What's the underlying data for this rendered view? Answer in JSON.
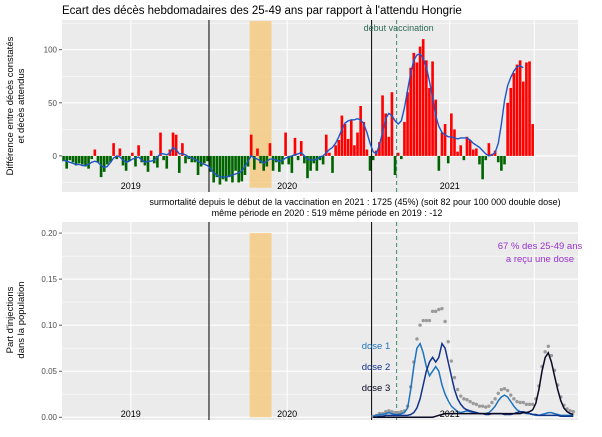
{
  "chart_data": [
    {
      "type": "bar",
      "title": "Ecart des décès hebdomadaires des 25-49 ans par rapport à l'attendu Hongrie",
      "ylabel_lines": [
        "Différence entre décès constatés",
        "et décès attendus"
      ],
      "xlim": [
        0,
        165
      ],
      "ylim": [
        -34,
        128
      ],
      "yticks": [
        0,
        50,
        100
      ],
      "year_labels": [
        {
          "label": "2019",
          "x": 22
        },
        {
          "label": "2020",
          "x": 72
        },
        {
          "label": "2021",
          "x": 124
        }
      ],
      "year_lines": [
        47,
        99
      ],
      "vaccination_line": {
        "x": 107,
        "label": "début vaccination"
      },
      "highlight": {
        "x0": 60,
        "x1": 67,
        "color": "#f5c97c"
      },
      "positive_color": "#ff0000",
      "negative_color": "#006400",
      "smooth_color": "#1e56c8",
      "values": [
        -5,
        -12,
        -4,
        -6,
        -9,
        -7,
        -8,
        -10,
        -12,
        -3,
        6,
        -6,
        -20,
        -15,
        -8,
        -6,
        12,
        -3,
        7,
        -9,
        -14,
        -5,
        3,
        -10,
        10,
        -6,
        -9,
        -15,
        5,
        -7,
        -11,
        22,
        -4,
        -12,
        6,
        22,
        20,
        -16,
        12,
        -7,
        -3,
        -6,
        -6,
        -18,
        -10,
        -7,
        -5,
        -15,
        -25,
        -20,
        -27,
        -22,
        -24,
        -20,
        -25,
        -14,
        -25,
        -24,
        -18,
        -10,
        20,
        -13,
        7,
        -7,
        -14,
        -10,
        12,
        -14,
        -6,
        -15,
        -8,
        22,
        -8,
        -16,
        17,
        -4,
        14,
        -7,
        -21,
        -14,
        -7,
        -14,
        -4,
        -8,
        20,
        3,
        -16,
        10,
        15,
        38,
        30,
        16,
        34,
        10,
        22,
        47,
        32,
        6,
        -14,
        -4,
        5,
        13,
        57,
        40,
        18,
        60,
        -18,
        3,
        -3,
        32,
        60,
        83,
        97,
        88,
        103,
        110,
        90,
        64,
        89,
        53,
        -14,
        22,
        30,
        -7,
        40,
        25,
        4,
        10,
        -4,
        18,
        15,
        6,
        7,
        -8,
        -22,
        -4,
        12,
        2,
        5,
        -6,
        -14,
        -8,
        50,
        64,
        78,
        86,
        90,
        70,
        88,
        89,
        30
      ],
      "smooth": [
        -4,
        -5,
        -6,
        -7,
        -8,
        -8,
        -9,
        -9,
        -8,
        -6,
        -5,
        -6,
        -9,
        -11,
        -10,
        -6,
        -2,
        0,
        -1,
        -4,
        -6,
        -5,
        -3,
        -2,
        -1,
        -4,
        -6,
        -5,
        -5,
        -4,
        -1,
        2,
        2,
        1,
        3,
        8,
        6,
        2,
        2,
        1,
        -1,
        -2,
        -3,
        -5,
        -7,
        -8,
        -9,
        -12,
        -16,
        -18,
        -20,
        -20,
        -20,
        -19,
        -18,
        -17,
        -16,
        -14,
        -10,
        -5,
        0,
        -2,
        -3,
        -5,
        -7,
        -5,
        -3,
        -3,
        -4,
        -5,
        -4,
        -2,
        -1,
        0,
        1,
        2,
        3,
        0,
        -3,
        -4,
        -4,
        -3,
        -1,
        0,
        3,
        6,
        8,
        12,
        18,
        25,
        31,
        33,
        34,
        34,
        35,
        34,
        30,
        22,
        12,
        4,
        2,
        10,
        22,
        35,
        40,
        38,
        33,
        30,
        33,
        45,
        62,
        78,
        90,
        95,
        96,
        92,
        84,
        70,
        55,
        38,
        28,
        22,
        20,
        18,
        18,
        17,
        16,
        17,
        17,
        17,
        15,
        12,
        10,
        8,
        5,
        2,
        0,
        1,
        3,
        12,
        30,
        52,
        66,
        74,
        80,
        84,
        85,
        83
      ],
      "annotations": [
        "surmortalité depuis le début de la vaccination en 2021 : 1725  (45%)          (soit 82 pour 100 000 double dose)",
        "même période en 2020 : 519          même période en 2019 : -12"
      ]
    },
    {
      "type": "line",
      "ylabel_lines": [
        "Part d'injections",
        "dans la population"
      ],
      "xlim": [
        0,
        165
      ],
      "ylim": [
        -0.003,
        0.212
      ],
      "yticks": [
        0.0,
        0.05,
        0.1,
        0.15,
        0.2
      ],
      "ytick_labels": [
        "0.00",
        "0.05",
        "0.10",
        "0.15",
        "0.20"
      ],
      "year_labels": [
        {
          "label": "2019",
          "x": 22
        },
        {
          "label": "2020",
          "x": 72
        },
        {
          "label": "2021",
          "x": 124
        }
      ],
      "year_lines": [
        47,
        99
      ],
      "vaccination_line": {
        "x": 107
      },
      "highlight": {
        "x0": 60,
        "x1": 67,
        "color": "#f5c97c"
      },
      "annotation": [
        "67 % des 25-49 ans",
        "a reçu une dose"
      ],
      "annotation_color": "#9932cc",
      "series": [
        {
          "name": "dose 1",
          "color": "#1e73be",
          "x0": 99,
          "values": [
            0.001,
            0.002,
            0.003,
            0.003,
            0.004,
            0.005,
            0.004,
            0.003,
            0.003,
            0.004,
            0.005,
            0.01,
            0.03,
            0.055,
            0.075,
            0.08,
            0.07,
            0.055,
            0.045,
            0.05,
            0.055,
            0.05,
            0.035,
            0.025,
            0.018,
            0.012,
            0.009,
            0.006,
            0.005,
            0.006,
            0.007,
            0.006,
            0.005,
            0.005,
            0.004,
            0.004,
            0.004,
            0.005,
            0.008,
            0.012,
            0.018,
            0.022,
            0.024,
            0.022,
            0.017,
            0.012,
            0.008,
            0.006,
            0.005,
            0.004,
            0.004,
            0.003,
            0.002,
            0.002,
            0.003,
            0.004,
            0.005,
            0.005,
            0.004,
            0.003,
            0.002,
            0.002,
            0.002,
            0.002,
            0.002
          ]
        },
        {
          "name": "dose 2",
          "color": "#12338a",
          "x0": 99,
          "values": [
            0.0,
            0.0,
            0.001,
            0.001,
            0.002,
            0.002,
            0.002,
            0.002,
            0.002,
            0.002,
            0.002,
            0.002,
            0.003,
            0.005,
            0.01,
            0.02,
            0.035,
            0.05,
            0.06,
            0.065,
            0.06,
            0.065,
            0.08,
            0.075,
            0.06,
            0.045,
            0.03,
            0.02,
            0.014,
            0.01,
            0.008,
            0.007,
            0.006,
            0.005,
            0.004,
            0.004,
            0.003,
            0.003,
            0.004,
            0.004,
            0.004,
            0.004,
            0.003,
            0.003,
            0.003,
            0.004,
            0.005,
            0.006,
            0.006,
            0.005,
            0.004,
            0.003,
            0.003,
            0.002,
            0.002,
            0.002,
            0.002,
            0.002,
            0.002,
            0.002,
            0.001,
            0.001,
            0.001,
            0.001,
            0.001
          ]
        },
        {
          "name": "dose 3",
          "color": "#0a0a24",
          "x0": 99,
          "values": [
            0.0,
            0.0,
            0.0,
            0.0,
            0.0,
            0.0,
            0.0,
            0.0,
            0.0,
            0.0,
            0.0,
            0.0,
            0.0,
            0.0,
            0.0,
            0.0,
            0.0,
            0.0,
            0.0,
            0.0,
            0.001,
            0.002,
            0.003,
            0.004,
            0.004,
            0.004,
            0.004,
            0.004,
            0.004,
            0.004,
            0.004,
            0.004,
            0.004,
            0.004,
            0.004,
            0.004,
            0.004,
            0.004,
            0.004,
            0.004,
            0.004,
            0.004,
            0.004,
            0.004,
            0.004,
            0.004,
            0.004,
            0.004,
            0.005,
            0.005,
            0.006,
            0.008,
            0.015,
            0.03,
            0.05,
            0.065,
            0.07,
            0.06,
            0.045,
            0.03,
            0.018,
            0.01,
            0.006,
            0.004,
            0.003
          ]
        }
      ],
      "total_points": {
        "name": "",
        "color": "#9a9a9a",
        "x0": 99,
        "values": [
          0.001,
          0.002,
          0.004,
          0.004,
          0.006,
          0.007,
          0.006,
          0.005,
          0.005,
          0.006,
          0.007,
          0.012,
          0.033,
          0.06,
          0.085,
          0.1,
          0.105,
          0.105,
          0.105,
          0.115,
          0.115,
          0.117,
          0.118,
          0.104,
          0.082,
          0.061,
          0.043,
          0.03,
          0.023,
          0.02,
          0.019,
          0.017,
          0.015,
          0.014,
          0.012,
          0.012,
          0.011,
          0.012,
          0.016,
          0.02,
          0.026,
          0.03,
          0.031,
          0.029,
          0.024,
          0.02,
          0.017,
          0.016,
          0.016,
          0.014,
          0.014,
          0.014,
          0.02,
          0.034,
          0.055,
          0.071,
          0.077,
          0.067,
          0.051,
          0.035,
          0.022,
          0.013,
          0.009,
          0.007,
          0.006
        ]
      }
    }
  ]
}
